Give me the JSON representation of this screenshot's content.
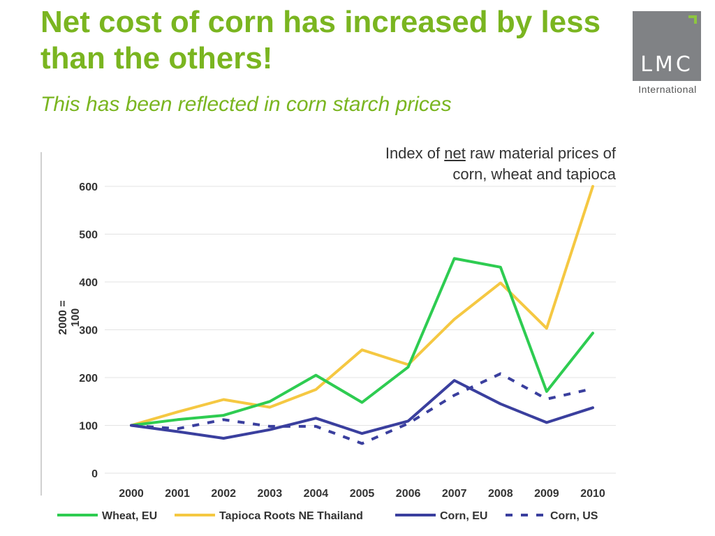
{
  "slide": {
    "title": "Net cost of corn has increased by less than the others!",
    "subtitle": "This has been reflected in corn starch prices"
  },
  "logo": {
    "text": "LMC",
    "subtext": "International",
    "box_color": "#808285",
    "accent_color": "#8dc63f"
  },
  "chart_heading": {
    "line1_pre": "Index of ",
    "line1_underlined": "net",
    "line1_post": " raw material prices of",
    "line2": "corn, wheat and tapioca"
  },
  "chart_data": {
    "type": "line",
    "title": "Index of net raw material prices of corn, wheat and tapioca",
    "ylabel": "2000 = 100",
    "xlabel": "",
    "ylim": [
      0,
      600
    ],
    "yticks": [
      0,
      100,
      200,
      300,
      400,
      500,
      600
    ],
    "grid": true,
    "legend_position": "bottom",
    "categories": [
      "2000",
      "2001",
      "2002",
      "2003",
      "2004",
      "2005",
      "2006",
      "2007",
      "2008",
      "2009",
      "2010"
    ],
    "series": [
      {
        "name": "Wheat, EU",
        "color": "#2ecc51",
        "style": "solid",
        "values": [
          100,
          112,
          121,
          150,
          205,
          148,
          222,
          449,
          431,
          171,
          293
        ]
      },
      {
        "name": "Tapioca Roots NE Thailand",
        "color": "#f5c842",
        "style": "solid",
        "values": [
          100,
          128,
          154,
          138,
          175,
          258,
          227,
          322,
          398,
          303,
          600
        ]
      },
      {
        "name": "Corn, EU",
        "color": "#3a3f9e",
        "style": "solid",
        "values": [
          100,
          87,
          73,
          91,
          115,
          83,
          109,
          194,
          145,
          106,
          137
        ]
      },
      {
        "name": "Corn, US",
        "color": "#3a3f9e",
        "style": "dashed",
        "values": [
          100,
          93,
          112,
          98,
          98,
          62,
          104,
          163,
          208,
          155,
          177
        ]
      }
    ]
  }
}
